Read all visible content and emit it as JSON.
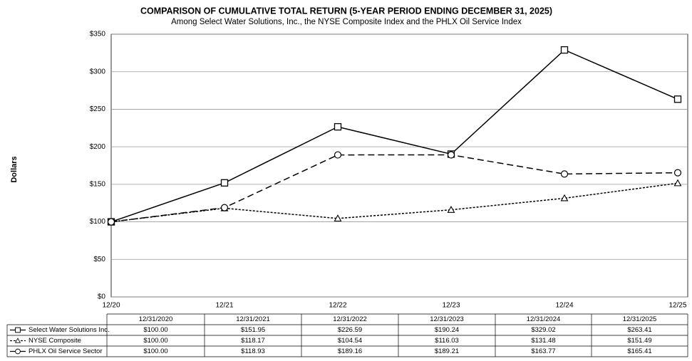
{
  "chart_data": {
    "type": "line",
    "title": "COMPARISON OF CUMULATIVE TOTAL RETURN (5-YEAR PERIOD ENDING DECEMBER 31, 2025)",
    "subtitle": "Among Select Water Solutions, Inc., the NYSE Composite Index and the PHLX Oil Service Index",
    "y_label": "Dollars",
    "categories": [
      "12/20",
      "12/21",
      "12/22",
      "12/23",
      "12/24",
      "12/25"
    ],
    "table_columns": [
      "12/31/2020",
      "12/31/2021",
      "12/31/2022",
      "12/31/2023",
      "12/31/2024",
      "12/31/2025"
    ],
    "ylim": [
      0,
      350
    ],
    "yticks": [
      {
        "value": 0,
        "label": "$0"
      },
      {
        "value": 50,
        "label": "$50"
      },
      {
        "value": 100,
        "label": "$100"
      },
      {
        "value": 150,
        "label": "$150"
      },
      {
        "value": 200,
        "label": "$200"
      },
      {
        "value": 250,
        "label": "$250"
      },
      {
        "value": 300,
        "label": "$300"
      },
      {
        "value": 350,
        "label": "$350"
      }
    ],
    "grid": true,
    "series": [
      {
        "name": "Select Water Solutions Inc.",
        "color": "#000000",
        "line_style": "solid",
        "marker": "square",
        "values": [
          100.0,
          151.95,
          226.59,
          190.24,
          329.02,
          263.41
        ],
        "value_labels": [
          "$100.00",
          "$151.95",
          "$226.59",
          "$190.24",
          "$329.02",
          "$263.41"
        ]
      },
      {
        "name": "NYSE Composite",
        "color": "#000000",
        "line_style": "dotted",
        "marker": "triangle",
        "values": [
          100.0,
          118.17,
          104.54,
          116.03,
          131.48,
          151.49
        ],
        "value_labels": [
          "$100.00",
          "$118.17",
          "$104.54",
          "$116.03",
          "$131.48",
          "$151.49"
        ]
      },
      {
        "name": "PHLX Oil Service Sector",
        "color": "#000000",
        "line_style": "dashed",
        "marker": "circle",
        "values": [
          100.0,
          118.93,
          189.16,
          189.21,
          163.77,
          165.41
        ],
        "value_labels": [
          "$100.00",
          "$118.93",
          "$189.16",
          "$189.21",
          "$163.77",
          "$165.41"
        ]
      }
    ]
  }
}
